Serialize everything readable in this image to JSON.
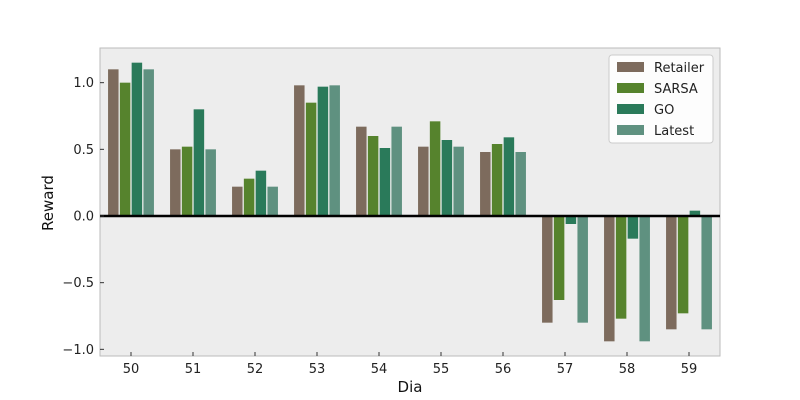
{
  "chart_data": {
    "type": "bar",
    "xlabel": "Dia",
    "ylabel": "Reward",
    "categories": [
      "50",
      "51",
      "52",
      "53",
      "54",
      "55",
      "56",
      "57",
      "58",
      "59"
    ],
    "ylim": [
      -1.05,
      1.26
    ],
    "yticks": [
      1.0,
      0.5,
      0.0,
      -0.5,
      -1.0
    ],
    "ytick_labels": [
      "1.0",
      "0.5",
      "0.0",
      "−0.5",
      "−1.0"
    ],
    "grid": false,
    "legend_position": "top-right",
    "zero_line": true,
    "background": "#ededed",
    "series": [
      {
        "name": "Retailer",
        "color": "#7d6b5d",
        "values": [
          1.1,
          0.5,
          0.22,
          0.98,
          0.67,
          0.52,
          0.48,
          -0.8,
          -0.94,
          -0.85
        ]
      },
      {
        "name": "SARSA",
        "color": "#56832d",
        "values": [
          1.0,
          0.52,
          0.28,
          0.85,
          0.6,
          0.71,
          0.54,
          -0.63,
          -0.77,
          -0.73
        ]
      },
      {
        "name": "GO",
        "color": "#2a7a5a",
        "values": [
          1.15,
          0.8,
          0.34,
          0.97,
          0.51,
          0.57,
          0.59,
          -0.06,
          -0.17,
          0.04
        ]
      },
      {
        "name": "Latest",
        "color": "#5f9180",
        "values": [
          1.1,
          0.5,
          0.22,
          0.98,
          0.67,
          0.52,
          0.48,
          -0.8,
          -0.94,
          -0.85
        ]
      }
    ]
  }
}
